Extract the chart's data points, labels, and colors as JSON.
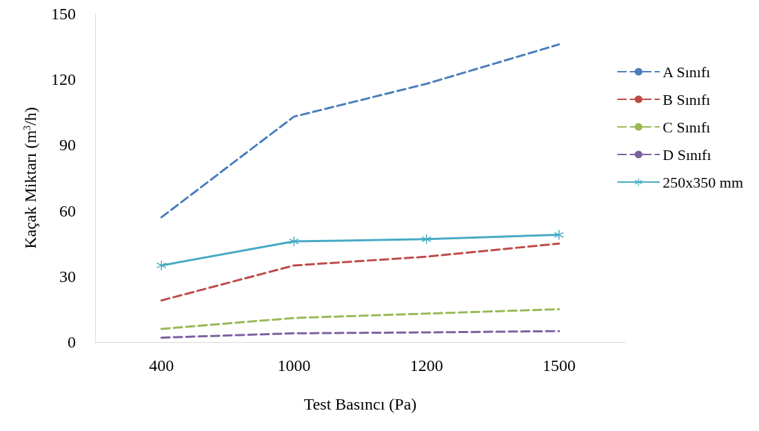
{
  "chart_data": {
    "type": "line",
    "xlabel": "Test Basıncı (Pa)",
    "ylabel": "Kaçak Miktarı (m$^{3}$/h)",
    "categories": [
      "400",
      "1000",
      "1200",
      "1500"
    ],
    "ylim": [
      0,
      150
    ],
    "yticks": [
      0,
      30,
      60,
      90,
      120,
      150
    ],
    "grid": false,
    "legend": "right",
    "series": [
      {
        "name": "A Sınıfı",
        "color": "#4a7ebb",
        "values": [
          57,
          103,
          118,
          136
        ],
        "line_style": "dashed",
        "marker": "none"
      },
      {
        "name": "B Sınıfı",
        "color": "#be4b48",
        "values": [
          19,
          35,
          39,
          45
        ],
        "line_style": "dashed",
        "marker": "none"
      },
      {
        "name": "C Sınıfı",
        "color": "#98b954",
        "values": [
          6,
          11,
          13,
          15
        ],
        "line_style": "dashed",
        "marker": "none"
      },
      {
        "name": "D Sınıfı",
        "color": "#7d60a0",
        "values": [
          2,
          4,
          4.4,
          5
        ],
        "line_style": "dashed",
        "marker": "none"
      },
      {
        "name": "250x350 mm",
        "color": "#46aac5",
        "values": [
          35,
          46,
          47,
          49
        ],
        "line_style": "solid",
        "marker": "star"
      }
    ]
  }
}
